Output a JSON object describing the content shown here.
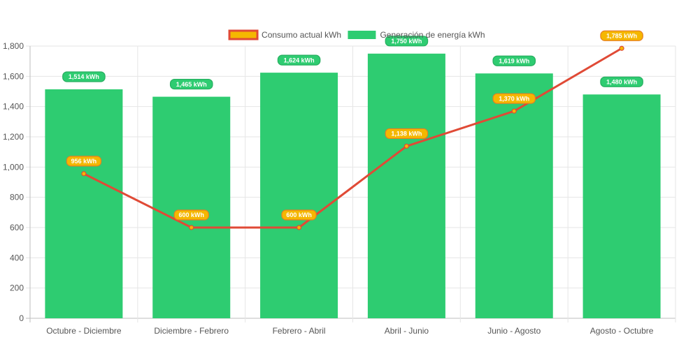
{
  "chart_data": {
    "type": "bar",
    "categories": [
      "Octubre - Diciembre",
      "Diciembre - Febrero",
      "Febrero - Abril",
      "Abril - Junio",
      "Junio - Agosto",
      "Agosto - Octubre"
    ],
    "series": [
      {
        "name": "Consumo actual kWh",
        "type": "line",
        "values": [
          956,
          600,
          600,
          1138,
          1370,
          1785
        ],
        "labels": [
          "956 kWh",
          "600 kWh",
          "600 kWh",
          "1,138 kWh",
          "1,370 kWh",
          "1,785 kWh"
        ],
        "color": "#e04a36",
        "marker_color": "#f5b700"
      },
      {
        "name": "Generación de energía kWh",
        "type": "bar",
        "values": [
          1514,
          1465,
          1624,
          1750,
          1619,
          1480
        ],
        "labels": [
          "1,514 kWh",
          "1,465 kWh",
          "1,624 kWh",
          "1,750 kWh",
          "1,619 kWh",
          "1,480 kWh"
        ],
        "color": "#2ecc71"
      }
    ],
    "y_ticks": [
      "0",
      "200",
      "400",
      "600",
      "800",
      "1,000",
      "1,200",
      "1,400",
      "1,600",
      "1,800"
    ],
    "ylim": [
      0,
      1800
    ],
    "grid": true,
    "legend_position": "top"
  }
}
